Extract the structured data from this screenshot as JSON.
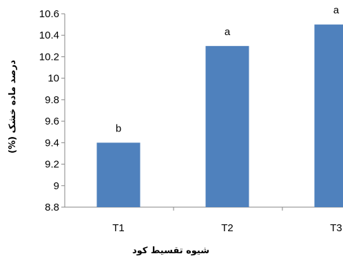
{
  "chart_data": {
    "type": "bar",
    "categories": [
      "T1",
      "T2",
      "T3"
    ],
    "values": [
      9.4,
      10.3,
      10.5
    ],
    "data_labels": [
      "b",
      "a",
      "a"
    ],
    "title": "",
    "xlabel": "شیوه تقسیط کود",
    "ylabel": "درصد ماده خشک (%)",
    "ylim": [
      8.8,
      10.6
    ],
    "yticks": [
      "8.8",
      "9",
      "9.2",
      "9.4",
      "9.6",
      "9.8",
      "10",
      "10.2",
      "10.4",
      "10.6"
    ],
    "grid": false,
    "legend": "none",
    "bar_color": "#4F81BD"
  }
}
